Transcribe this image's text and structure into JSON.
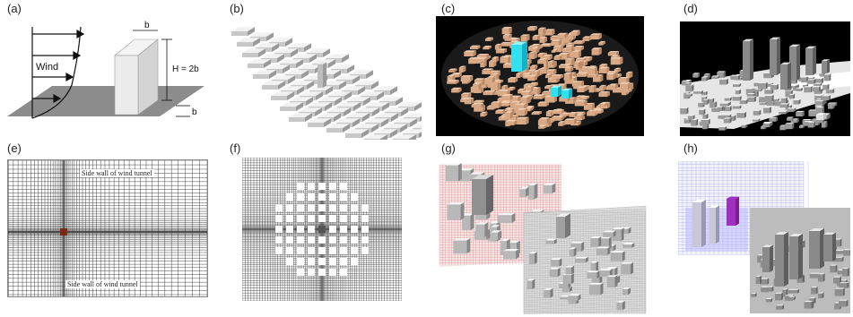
{
  "panels": [
    {
      "label": "(a)",
      "annotations": {
        "wind": "Wind",
        "width": "b",
        "height": "H = 2b",
        "depth": "b"
      }
    },
    {
      "label": "(b)"
    },
    {
      "label": "(c)"
    },
    {
      "label": "(d)"
    },
    {
      "label": "(e)",
      "annotations": {
        "top_wall": "Side wall of wind tunnel",
        "bottom_wall": "Side wall of wind tunnel"
      }
    },
    {
      "label": "(f)"
    },
    {
      "label": "(g)"
    },
    {
      "label": "(h)"
    }
  ],
  "colors": {
    "building_tan": "#e8bfa0",
    "building_cyan": "#33e0f0",
    "ground_gray": "#8c8c8c",
    "mesh_red": "#d04040",
    "mesh_blue": "#5060e0",
    "mesh_purple": "#a030c0"
  }
}
